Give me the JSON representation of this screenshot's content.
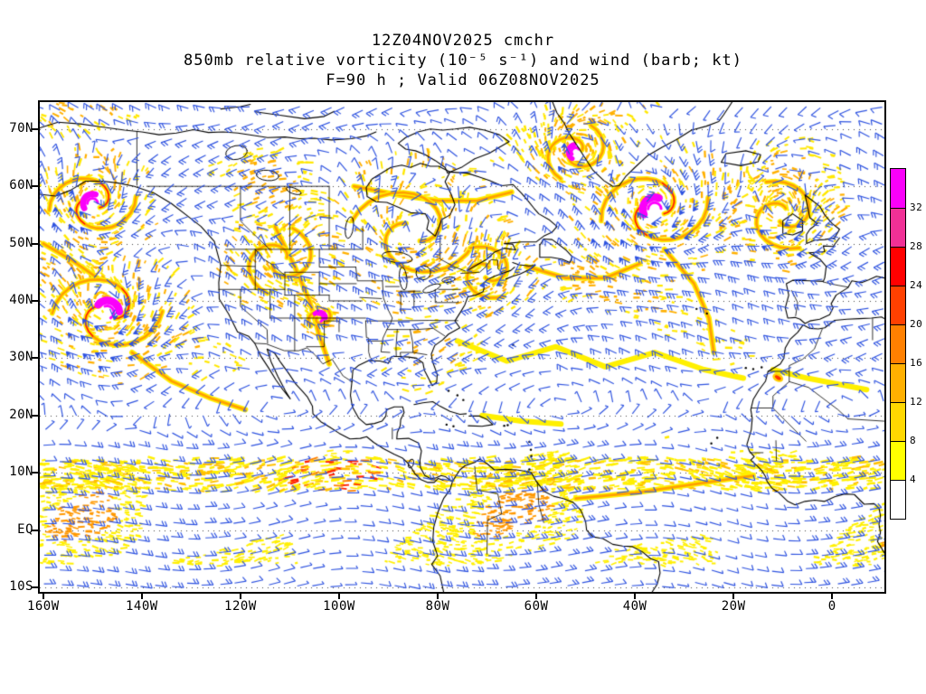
{
  "title": {
    "line1": "12Z04NOV2025 cmchr",
    "line2": "850mb relative vorticity (10⁻⁵ s⁻¹) and wind (barb; kt)",
    "line3": "F=90 h ; Valid 06Z08NOV2025"
  },
  "chart_data": {
    "type": "heatmap",
    "title": "12Z04NOV2025 cmchr — 850mb relative vorticity (10⁻⁵ s⁻¹) and wind (barb; kt) — F=90 h ; Valid 06Z08NOV2025",
    "model": "cmchr",
    "init_time": "12Z04NOV2025",
    "field": "850mb relative vorticity",
    "units": "10⁻⁵ s⁻¹",
    "overlay": "wind (barb; kt)",
    "forecast_hour": "F=90 h",
    "valid_time": "06Z08NOV2025",
    "x_tick_labels": [
      "160W",
      "140W",
      "120W",
      "100W",
      "80W",
      "60W",
      "40W",
      "20W",
      "0"
    ],
    "y_tick_labels": [
      "70N",
      "60N",
      "50N",
      "40N",
      "30N",
      "20N",
      "10N",
      "EQ",
      "10S"
    ],
    "grid": "dotted latitude lines",
    "colorbar": {
      "position": "right",
      "tick_labels": [
        "4",
        "8",
        "12",
        "16",
        "20",
        "24",
        "28",
        "32"
      ],
      "levels": [
        4,
        8,
        12,
        16,
        20,
        24,
        28,
        32
      ],
      "colors_low_to_high": [
        "#ffffff",
        "#ffff00",
        "#ffd800",
        "#ffb000",
        "#ff8000",
        "#ff4000",
        "#ff0000",
        "#f03096",
        "#fa00fa"
      ]
    },
    "wind_barb_color": "#2d52e0",
    "coastline_color": "#000000",
    "vorticity_maxima_lon_lat": [
      [
        -150,
        57
      ],
      [
        -147,
        38
      ],
      [
        -85,
        52
      ],
      [
        -52,
        66
      ],
      [
        -36,
        56
      ],
      [
        -10,
        55
      ],
      [
        -104,
        37
      ],
      [
        -112,
        47
      ],
      [
        -70,
        45
      ]
    ]
  }
}
